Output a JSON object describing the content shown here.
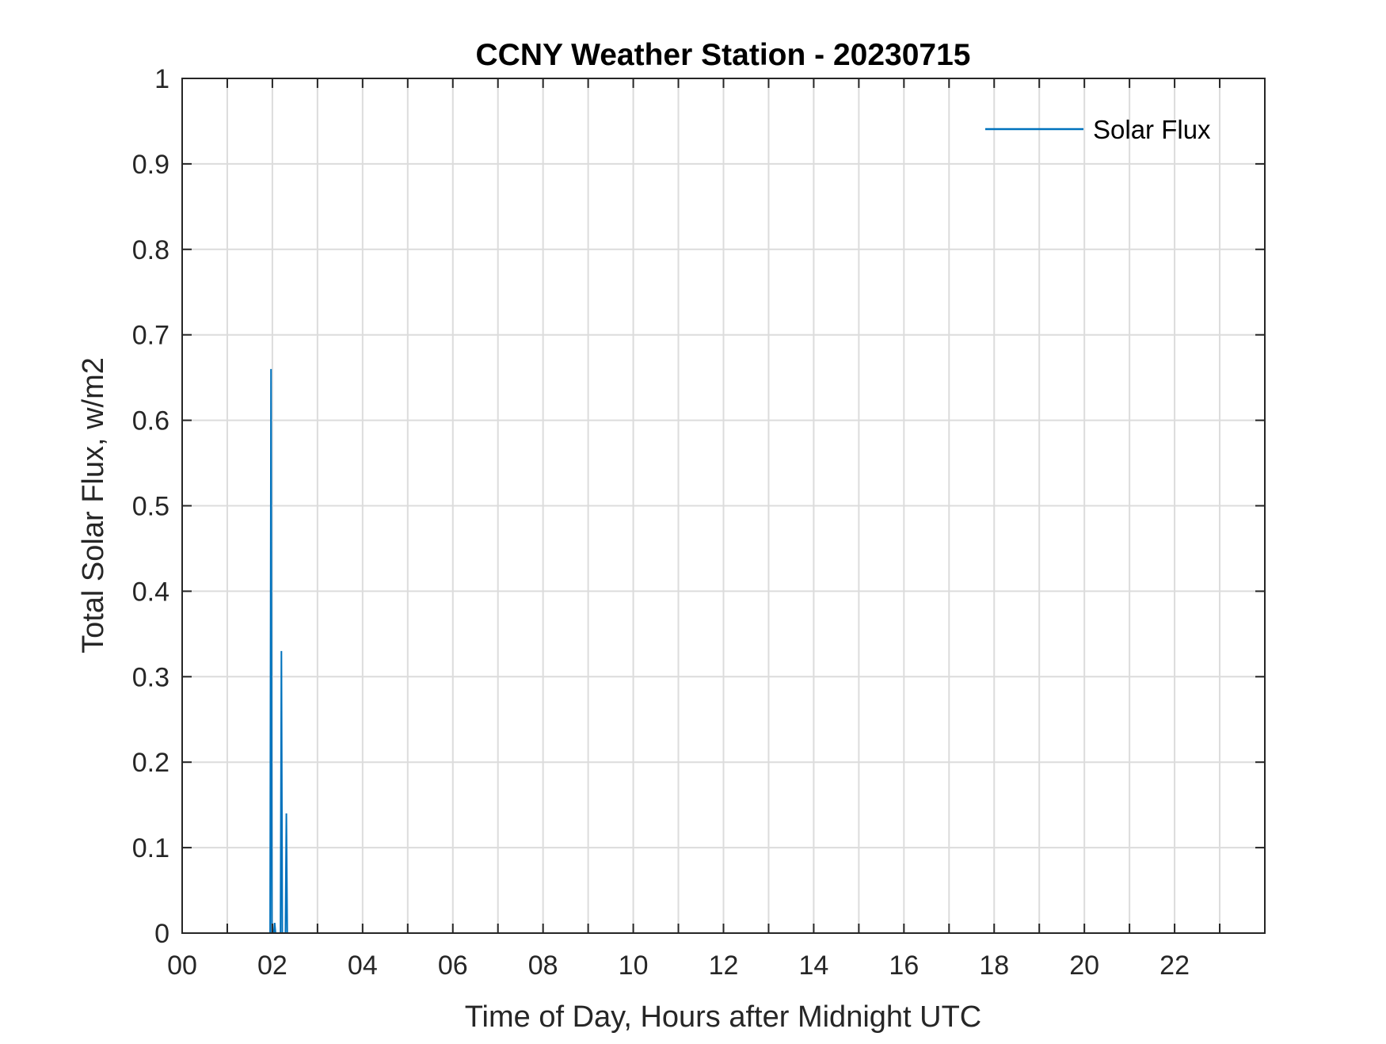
{
  "chart_data": {
    "type": "line",
    "title": "CCNY Weather Station - 20230715",
    "xlabel": "Time of Day, Hours after Midnight UTC",
    "ylabel": "Total Solar Flux, w/m2",
    "xlim": [
      0,
      24
    ],
    "ylim": [
      0,
      1
    ],
    "grid": true,
    "legend_position": "top-right",
    "x_ticks": [
      0,
      2,
      4,
      6,
      8,
      10,
      12,
      14,
      16,
      18,
      20,
      22
    ],
    "x_tick_labels": [
      "00",
      "02",
      "04",
      "06",
      "08",
      "10",
      "12",
      "14",
      "16",
      "18",
      "20",
      "22"
    ],
    "x_minor_grid_step": 1,
    "y_ticks": [
      0,
      0.1,
      0.2,
      0.3,
      0.4,
      0.5,
      0.6,
      0.7,
      0.8,
      0.9,
      1
    ],
    "y_tick_labels": [
      "0",
      "0.1",
      "0.2",
      "0.3",
      "0.4",
      "0.5",
      "0.6",
      "0.7",
      "0.8",
      "0.9",
      "1"
    ],
    "series": [
      {
        "name": "Solar Flux",
        "color": "#0072BD",
        "x": [
          0,
          1.95,
          1.97,
          1.99,
          2.03,
          2.05,
          2.07,
          2.18,
          2.2,
          2.22,
          2.29,
          2.31,
          2.33,
          24
        ],
        "y": [
          0,
          0,
          0.66,
          0,
          0,
          0.012,
          0,
          0,
          0.33,
          0,
          0,
          0.14,
          0,
          0
        ]
      }
    ]
  }
}
